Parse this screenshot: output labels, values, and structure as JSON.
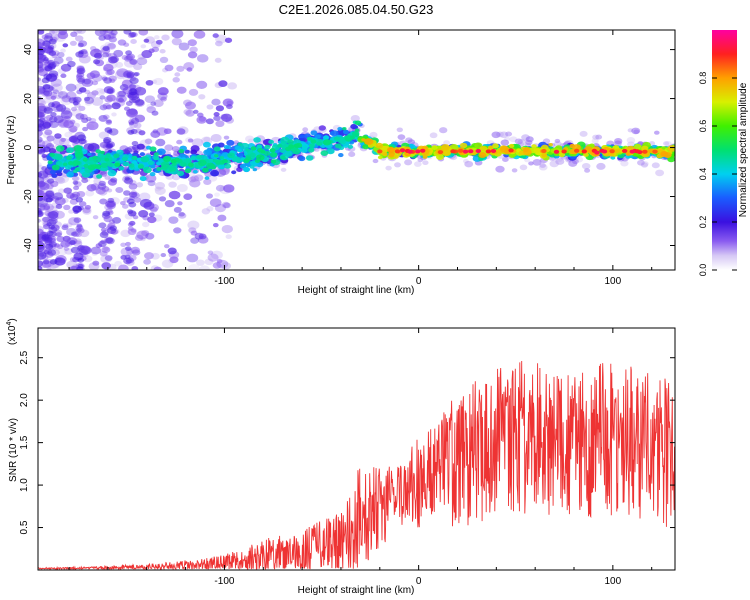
{
  "title": "C2E1.2026.085.04.50.G23",
  "spectrogram": {
    "type": "heatmap",
    "xlabel": "Height of straight line (km)",
    "ylabel": "Frequency (Hz)",
    "xlim": [
      -196,
      132
    ],
    "ylim": [
      -50,
      48
    ],
    "xticks": [
      -100,
      0,
      100
    ],
    "yticks": [
      -40,
      -20,
      0,
      20,
      40
    ],
    "colorbar": {
      "label": "Normalized spectral amplitude",
      "ticks": [
        "0.0",
        "0.2",
        "0.4",
        "0.6",
        "0.8"
      ],
      "range": [
        0,
        1
      ]
    }
  },
  "chart_data": {
    "type": "line",
    "color": "#ee3333",
    "xlabel": "Height of straight line (km)",
    "ylabel": "SNR (10 * v/v)",
    "yscale_label": "(x10",
    "yscale_exp": "4",
    "yscale_close": ")",
    "xlim": [
      -196,
      132
    ],
    "ylim": [
      0,
      2.85
    ],
    "xticks": [
      -100,
      0,
      100
    ],
    "yticks": [
      "0.5",
      "1.0",
      "1.5",
      "2.0",
      "2.5"
    ],
    "envelope": {
      "x": [
        -196,
        -170,
        -150,
        -130,
        -110,
        -90,
        -75,
        -60,
        -45,
        -35,
        -30,
        -25,
        -15,
        -5,
        0,
        10,
        20,
        30,
        40,
        50,
        60,
        70,
        80,
        90,
        100,
        110,
        120,
        128,
        132
      ],
      "mean": [
        0.01,
        0.02,
        0.03,
        0.04,
        0.06,
        0.12,
        0.18,
        0.22,
        0.3,
        0.45,
        0.6,
        0.7,
        0.8,
        0.9,
        1.05,
        1.2,
        1.3,
        1.4,
        1.5,
        1.55,
        1.55,
        1.5,
        1.5,
        1.5,
        1.55,
        1.5,
        1.45,
        1.4,
        1.4
      ],
      "amp": [
        0.01,
        0.02,
        0.03,
        0.05,
        0.08,
        0.14,
        0.22,
        0.25,
        0.35,
        0.5,
        0.7,
        0.55,
        0.45,
        0.5,
        0.55,
        0.65,
        0.8,
        0.85,
        0.9,
        0.95,
        0.9,
        0.85,
        0.85,
        0.9,
        0.95,
        0.9,
        0.9,
        0.9,
        0.9
      ]
    }
  }
}
